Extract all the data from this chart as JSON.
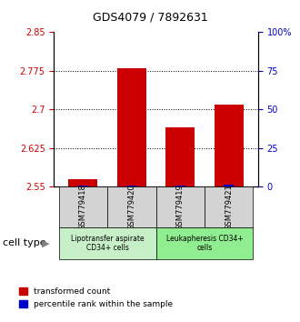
{
  "title": "GDS4079 / 7892631",
  "samples": [
    "GSM779418",
    "GSM779420",
    "GSM779419",
    "GSM779421"
  ],
  "red_values": [
    2.565,
    2.78,
    2.665,
    2.71
  ],
  "blue_values": [
    0.5,
    1.0,
    0.5,
    1.5
  ],
  "ylim_left": [
    2.55,
    2.85
  ],
  "ylim_right": [
    0,
    100
  ],
  "yticks_left": [
    2.55,
    2.625,
    2.7,
    2.775,
    2.85
  ],
  "ytick_labels_left": [
    "2.55",
    "2.625",
    "2.7",
    "2.775",
    "2.85"
  ],
  "yticks_right": [
    0,
    25,
    50,
    75,
    100
  ],
  "ytick_labels_right": [
    "0",
    "25",
    "50",
    "75",
    "100%"
  ],
  "cell_types": [
    {
      "label": "Lipotransfer aspirate\nCD34+ cells",
      "color": "#c8f0c8",
      "samples": [
        0,
        1
      ]
    },
    {
      "label": "Leukapheresis CD34+\ncells",
      "color": "#90ee90",
      "samples": [
        2,
        3
      ]
    }
  ],
  "cell_type_label": "cell type",
  "legend_red": "transformed count",
  "legend_blue": "percentile rank within the sample",
  "bar_width": 0.4,
  "red_color": "#cc0000",
  "blue_color": "#0000cc",
  "background_color": "#ffffff",
  "plot_bg": "#ffffff",
  "tick_label_bg": "#d3d3d3"
}
